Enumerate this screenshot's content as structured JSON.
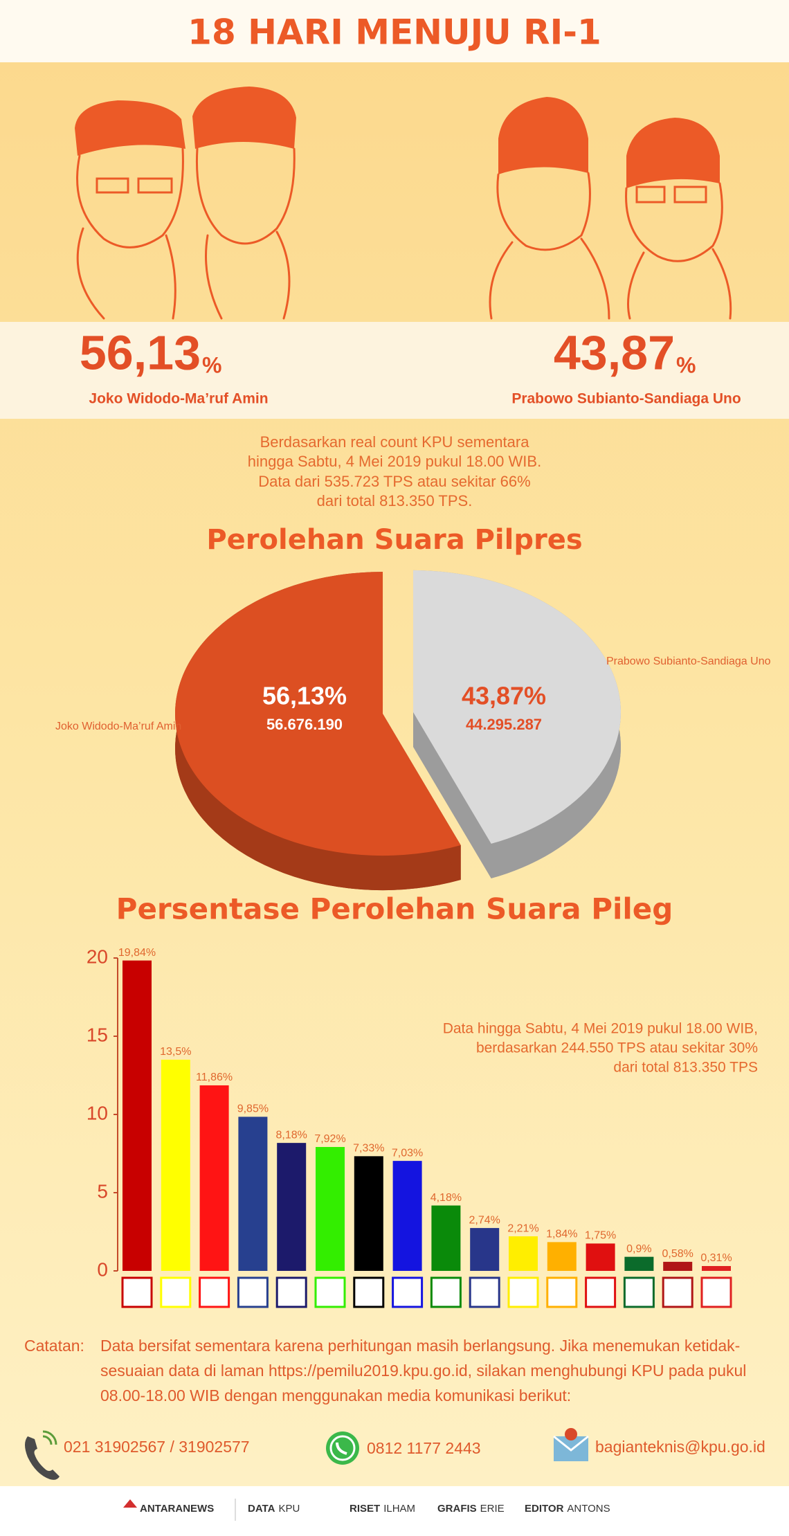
{
  "header": {
    "title": "18 HARI MENUJU RI-1"
  },
  "candidates": [
    {
      "percent": "56,13",
      "unit": "%",
      "name": "Joko Widodo-Ma’ruf Amin"
    },
    {
      "percent": "43,87",
      "unit": "%",
      "name": "Prabowo Subianto-Sandiaga Uno"
    }
  ],
  "source_note": [
    "Berdasarkan real count KPU sementara",
    "hingga Sabtu, 4 Mei 2019 pukul 18.00 WIB.",
    "Data dari 535.723 TPS atau sekitar 66%",
    "dari total 813.350 TPS."
  ],
  "chart_data": [
    {
      "type": "pie",
      "title": "Perolehan Suara Pilpres",
      "categories": [
        "Joko Widodo-Ma’ruf Amin",
        "Prabowo Subianto-Sandiaga Uno"
      ],
      "values": [
        56.13,
        43.87
      ],
      "value_labels": [
        "56,13%",
        "43,87%"
      ],
      "vote_labels": [
        "56.676.190",
        "44.295.287"
      ],
      "colors": [
        "#dc4f22",
        "#dadada"
      ]
    },
    {
      "type": "bar",
      "title": "Persentase Perolehan Suara Pileg",
      "annotation": [
        "Data hingga Sabtu, 4 Mei 2019 pukul 18.00 WIB,",
        "berdasarkan 244.550 TPS atau sekitar 30%",
        "dari total 813.350 TPS"
      ],
      "categories": [
        null,
        null,
        null,
        null,
        null,
        null,
        null,
        null,
        null,
        null,
        null,
        null,
        null,
        null,
        null,
        null
      ],
      "values": [
        19.84,
        13.5,
        11.86,
        9.85,
        8.18,
        7.92,
        7.33,
        7.03,
        4.18,
        2.74,
        2.21,
        1.84,
        1.75,
        0.9,
        0.58,
        0.31
      ],
      "value_labels": [
        "19,84%",
        "13,5%",
        "11,86%",
        "9,85%",
        "8,18%",
        "7,92%",
        "7,33%",
        "7,03%",
        "4,18%",
        "2,74%",
        "2,21%",
        "1,84%",
        "1,75%",
        "0,9%",
        "0,58%",
        "0,31%"
      ],
      "colors": [
        "#c80000",
        "#ffff00",
        "#ff1414",
        "#27408f",
        "#1c1a6b",
        "#33ee00",
        "#000000",
        "#1414e0",
        "#0a8a0a",
        "#28368a",
        "#ffee00",
        "#ffb000",
        "#e01010",
        "#0b6b2b",
        "#b01616",
        "#e02020"
      ],
      "ylim": [
        0,
        20
      ],
      "yticks": [
        0,
        5,
        10,
        15,
        20
      ]
    }
  ],
  "notes": {
    "label": "Catatan:",
    "lines": [
      "Data bersifat sementara karena perhitungan masih berlangsung. Jika menemukan ketidak-",
      "sesuaian data di laman https://pemilu2019.kpu.go.id, silakan menghubungi KPU pada pukul",
      "08.00-18.00 WIB dengan menggunakan media komunikasi berikut:"
    ]
  },
  "contacts": {
    "phone": "021 31902567 / 31902577",
    "whatsapp": "0812 1177 2443",
    "email": "bagianteknis@kpu.go.id"
  },
  "footer": {
    "brand": "ANTARANEWS",
    "items": [
      {
        "role": "DATA",
        "name": "KPU"
      },
      {
        "role": "RISET",
        "name": "ILHAM"
      },
      {
        "role": "GRAFIS",
        "name": "ERIE"
      },
      {
        "role": "EDITOR",
        "name": "ANTONS"
      }
    ]
  }
}
